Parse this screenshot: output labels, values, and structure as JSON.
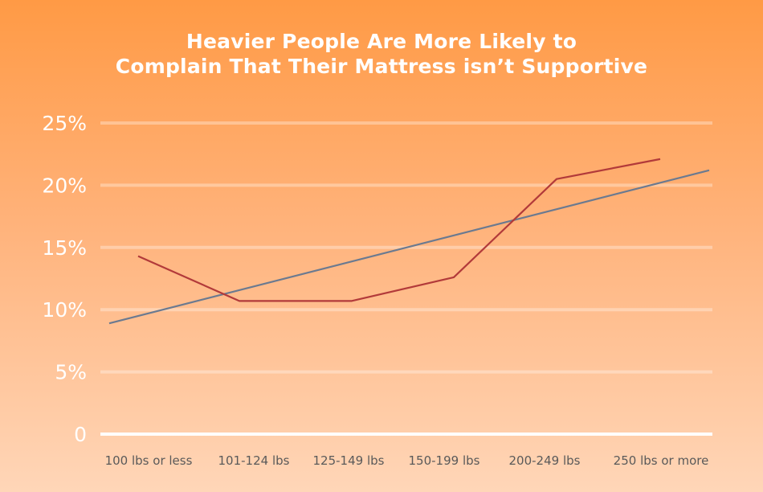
{
  "chart_data": {
    "type": "line",
    "title_lines": [
      "Heavier People Are More Likely to",
      "Complain That Their Mattress isn’t Supportive"
    ],
    "categories": [
      "100 lbs or less",
      "101-124 lbs",
      "125-149 lbs",
      "150-199 lbs",
      "200-249 lbs",
      "250 lbs or more"
    ],
    "y_tick_labels": [
      "0",
      "5%",
      "10%",
      "15%",
      "20%",
      "25%"
    ],
    "y_ticks": [
      0,
      5,
      10,
      15,
      20,
      25
    ],
    "ylim": [
      0,
      25
    ],
    "grid": true,
    "series": [
      {
        "values": [
          14.3,
          10.7,
          10.7,
          12.6,
          20.5,
          22.1
        ],
        "color": "#b23a3a"
      }
    ],
    "trendline": {
      "start": 8.9,
      "end": 21.2,
      "color": "#6b7a90"
    }
  }
}
